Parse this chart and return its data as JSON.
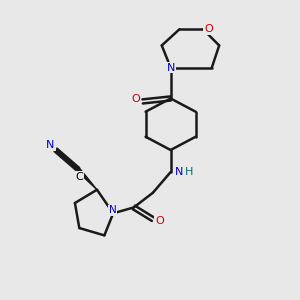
{
  "bg_color": "#e8e8e8",
  "atom_colors": {
    "N": "#0000cc",
    "O": "#cc0000",
    "C": "#000000",
    "N_teal": "#007070"
  },
  "bond_color": "#1a1a1a",
  "bond_width": 1.8
}
